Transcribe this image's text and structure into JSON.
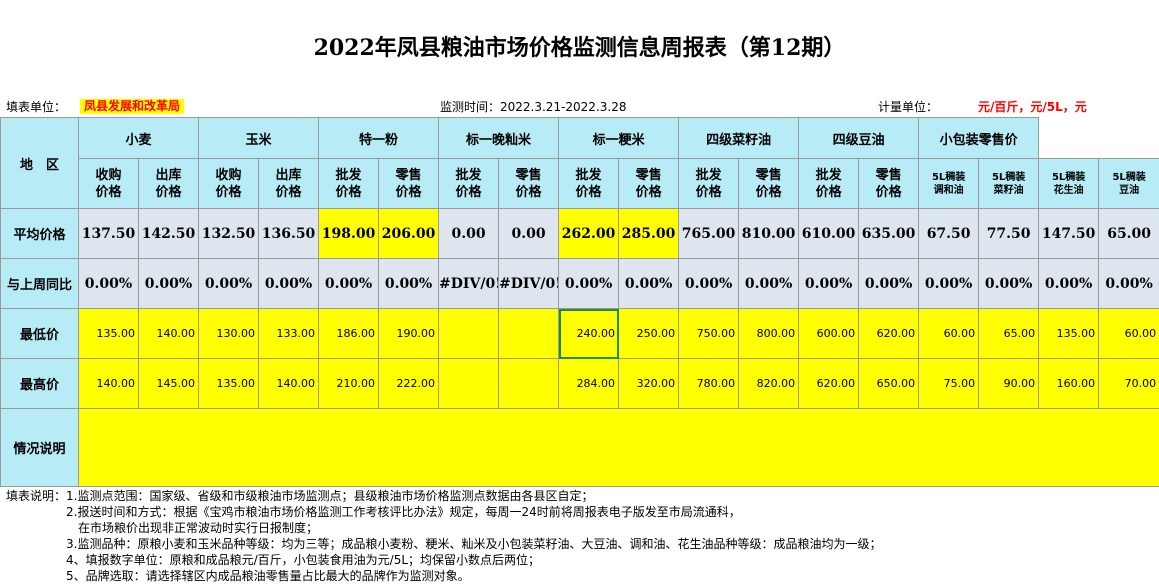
{
  "title": "2022年凤县粮油市场价格监测信息周报表（第12期）",
  "header": {
    "unit_label": "填表单位：",
    "unit_value": "凤县发展和改革局",
    "period": "监测时间：2022.3.21-2022.3.28",
    "measure_label": "计量单位：",
    "measure_value": "元/百斤，元/5L，元"
  },
  "table": {
    "region_label": "地　区",
    "groups": [
      "小麦",
      "玉米",
      "特一粉",
      "标一晚籼米",
      "标一粳米",
      "四级菜籽油",
      "四级豆油",
      "小包装零售价"
    ],
    "subheaders": [
      [
        "收购",
        "价格"
      ],
      [
        "出库",
        "价格"
      ],
      [
        "收购",
        "价格"
      ],
      [
        "出库",
        "价格"
      ],
      [
        "批发",
        "价格"
      ],
      [
        "零售",
        "价格"
      ],
      [
        "批发",
        "价格"
      ],
      [
        "零售",
        "价格"
      ],
      [
        "批发",
        "价格"
      ],
      [
        "零售",
        "价格"
      ],
      [
        "批发",
        "价格"
      ],
      [
        "零售",
        "价格"
      ],
      [
        "批发",
        "价格"
      ],
      [
        "零售",
        "价格"
      ],
      [
        "5L稠装",
        "调和油"
      ],
      [
        "5L稠装",
        "菜籽油"
      ],
      [
        "5L稠装",
        "花生油"
      ],
      [
        "5L稠装",
        "豆油"
      ]
    ],
    "rows": [
      {
        "label": "平均价格",
        "values": [
          "137.50",
          "142.50",
          "132.50",
          "136.50",
          "198.00",
          "206.00",
          "0.00",
          "0.00",
          "262.00",
          "285.00",
          "765.00",
          "810.00",
          "610.00",
          "635.00",
          "67.50",
          "77.50",
          "147.50",
          "65.00"
        ]
      },
      {
        "label": "与上周同比",
        "values": [
          "0.00%",
          "0.00%",
          "0.00%",
          "0.00%",
          "0.00%",
          "0.00%",
          "#DIV/0!",
          "#DIV/0!",
          "0.00%",
          "0.00%",
          "0.00%",
          "0.00%",
          "0.00%",
          "0.00%",
          "0.00%",
          "0.00%",
          "0.00%",
          "0.00%"
        ]
      },
      {
        "label": "最低价",
        "values": [
          "135.00",
          "140.00",
          "130.00",
          "133.00",
          "186.00",
          "190.00",
          "",
          "",
          "240.00",
          "250.00",
          "750.00",
          "800.00",
          "600.00",
          "620.00",
          "60.00",
          "65.00",
          "135.00",
          "60.00"
        ]
      },
      {
        "label": "最高价",
        "values": [
          "140.00",
          "145.00",
          "135.00",
          "140.00",
          "210.00",
          "222.00",
          "",
          "",
          "284.00",
          "320.00",
          "780.00",
          "820.00",
          "620.00",
          "650.00",
          "75.00",
          "90.00",
          "160.00",
          "70.00"
        ]
      }
    ],
    "notes_label": "情况说明"
  },
  "notes": [
    "填表说明：1.监测点范围：国家级、省级和市级粮油市场监测点；县级粮油市场价格监测点数据由各县区自定；",
    "　　　　　2.报送时间和方式：根据《宝鸡市粮油市场价格监测工作考核评比办法》规定，每周一24时前将周报表电子版发至市局流通科，",
    "　　　　　　在市场粮价出现非正常波动时实行日报制度；",
    "　　　　　3.监测品种：原粮小麦和玉米品种等级：均为三等；成品粮小麦粉、粳米、籼米及小包装菜籽油、大豆油、调和油、花生油品种等级：成品粮油均为一级；",
    "　　　　　4、填报数字单位：原粮和成品粮元/百斤，小包装食用油为元/5L；均保留小数点后两位；",
    "　　　　　5、品牌选取：请选择辖区内成品粮油零售量占比最大的品牌作为监测对象。"
  ]
}
